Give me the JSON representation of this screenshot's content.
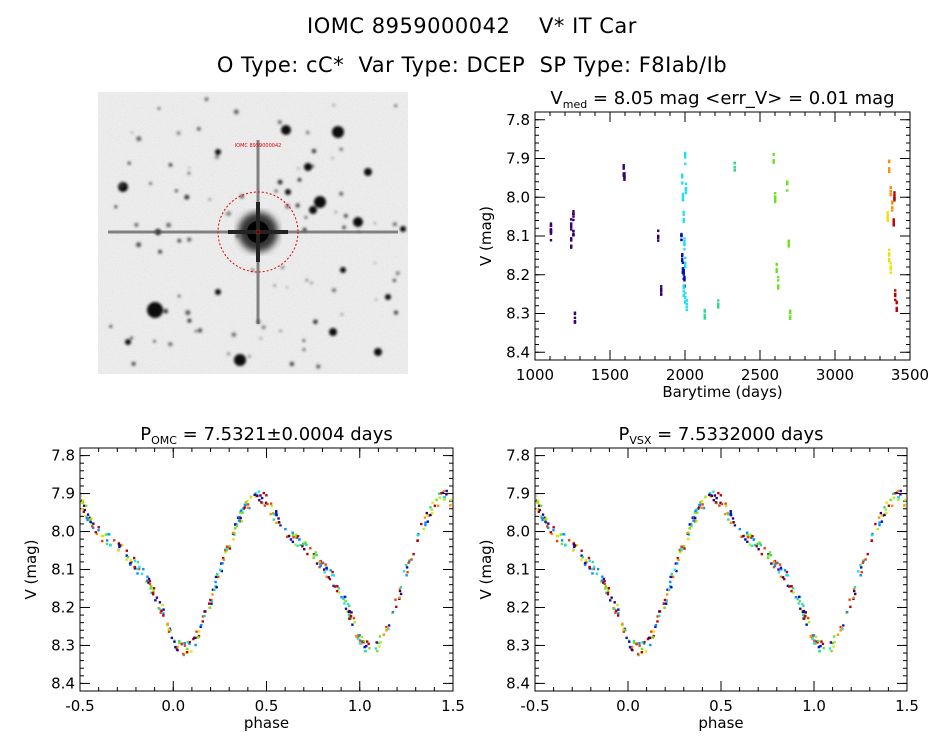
{
  "header": {
    "title_line1": "IOMC 8959000042    V* IT Car",
    "title_line2": "O Type: cC*  Var Type: DCEP  SP Type: F8Iab/Ib"
  },
  "finder": {
    "marker_label": "IOMC 8959000042"
  },
  "colors": {
    "palette": [
      "#3a0070",
      "#0010c0",
      "#0090ff",
      "#20e0f0",
      "#30d890",
      "#70e020",
      "#b0f010",
      "#f0e000",
      "#ff9000",
      "#f04000",
      "#c00000"
    ],
    "finder_circle": "#e00000"
  },
  "plots": {
    "lightcurve": {
      "title_main": "V",
      "title_sub": "med",
      "title_rest": " = 8.05 mag <err_V> = 0.01 mag",
      "xlabel": "Barytime (days)",
      "ylabel": "V (mag)"
    },
    "phase_omc": {
      "title_main": "P",
      "title_sub": "OMC",
      "title_rest": " = 7.5321±0.0004 days",
      "xlabel": "phase",
      "ylabel": "V (mag)"
    },
    "phase_vsx": {
      "title_main": "P",
      "title_sub": "VSX",
      "title_rest": " = 7.5332000 days",
      "xlabel": "phase",
      "ylabel": "V (mag)"
    }
  },
  "chart_data": [
    {
      "type": "scatter",
      "title": "Vmed = 8.05 mag <err_V> = 0.01 mag",
      "xlabel": "Barytime (days)",
      "ylabel": "V (mag)",
      "xlim": [
        1000,
        3500
      ],
      "ylim": [
        8.42,
        7.78
      ],
      "y_inverted": true,
      "xticks": [
        1000,
        1500,
        2000,
        2500,
        3000,
        3500
      ],
      "yticks": [
        7.8,
        7.9,
        8.0,
        8.1,
        8.2,
        8.3,
        8.4
      ],
      "series": [
        {
          "values": [
            [
              1105,
              8.08
            ],
            [
              1105,
              8.1
            ],
            [
              1240,
              8.07
            ],
            [
              1240,
              8.12
            ],
            [
              1255,
              8.05
            ],
            [
              1255,
              8.1
            ],
            [
              1265,
              8.31
            ],
            [
              1590,
              7.93
            ],
            [
              1595,
              7.95
            ],
            [
              1820,
              8.1
            ],
            [
              1840,
              8.24
            ]
          ],
          "color": "#3a0070"
        },
        {
          "values": [
            [
              1975,
              8.1
            ],
            [
              1980,
              8.15
            ],
            [
              1985,
              8.18
            ],
            [
              1990,
              8.2
            ],
            [
              1995,
              8.22
            ]
          ],
          "color": "#0010c0"
        },
        {
          "values": [
            [
              1980,
              7.95
            ],
            [
              1985,
              8.0
            ],
            [
              1990,
              8.05
            ],
            [
              1995,
              8.12
            ],
            [
              2000,
              8.17
            ],
            [
              2000,
              7.9
            ],
            [
              2005,
              7.98
            ],
            [
              2010,
              8.28
            ],
            [
              1990,
              8.24
            ],
            [
              2000,
              8.26
            ]
          ],
          "color": "#20e0f0"
        },
        {
          "values": [
            [
              2130,
              8.3
            ],
            [
              2220,
              8.28
            ],
            [
              2330,
              7.92
            ]
          ],
          "color": "#30d890"
        },
        {
          "values": [
            [
              2590,
              7.9
            ],
            [
              2600,
              8.0
            ],
            [
              2610,
              8.18
            ],
            [
              2620,
              8.22
            ],
            [
              2680,
              7.97
            ],
            [
              2690,
              8.12
            ],
            [
              2700,
              8.3
            ]
          ],
          "color": "#70e020"
        },
        {
          "values": [
            [
              3350,
              8.05
            ],
            [
              3360,
              8.15
            ],
            [
              3370,
              8.18
            ]
          ],
          "color": "#f0e000"
        },
        {
          "values": [
            [
              3360,
              7.92
            ],
            [
              3370,
              7.98
            ],
            [
              3380,
              8.02
            ]
          ],
          "color": "#ff9000"
        },
        {
          "values": [
            [
              3390,
              8.06
            ],
            [
              3400,
              8.25
            ],
            [
              3410,
              8.28
            ],
            [
              3395,
              8.0
            ]
          ],
          "color": "#c00000"
        }
      ]
    },
    {
      "type": "scatter",
      "title": "POMC = 7.5321±0.0004 days",
      "xlabel": "phase",
      "ylabel": "V (mag)",
      "xlim": [
        -0.5,
        1.5
      ],
      "ylim": [
        8.42,
        7.78
      ],
      "y_inverted": true,
      "xticks": [
        -0.5,
        0.0,
        0.5,
        1.0,
        1.5
      ],
      "yticks": [
        7.8,
        7.9,
        8.0,
        8.1,
        8.2,
        8.3,
        8.4
      ],
      "phase_curve": {
        "phase": [
          0.0,
          0.05,
          0.1,
          0.15,
          0.2,
          0.25,
          0.3,
          0.35,
          0.4,
          0.45,
          0.5,
          0.55,
          0.6,
          0.65,
          0.7,
          0.75,
          0.8,
          0.85,
          0.9,
          0.95,
          1.0
        ],
        "mag": [
          8.29,
          8.31,
          8.3,
          8.25,
          8.18,
          8.1,
          8.03,
          7.97,
          7.93,
          7.9,
          7.92,
          7.96,
          8.0,
          8.02,
          8.04,
          8.06,
          8.09,
          8.12,
          8.16,
          8.22,
          8.29
        ]
      }
    },
    {
      "type": "scatter",
      "title": "PVSX = 7.5332000 days",
      "xlabel": "phase",
      "ylabel": "V (mag)",
      "xlim": [
        -0.5,
        1.5
      ],
      "ylim": [
        8.42,
        7.78
      ],
      "y_inverted": true,
      "xticks": [
        -0.5,
        0.0,
        0.5,
        1.0,
        1.5
      ],
      "yticks": [
        7.8,
        7.9,
        8.0,
        8.1,
        8.2,
        8.3,
        8.4
      ],
      "phase_curve": {
        "phase": [
          0.0,
          0.05,
          0.1,
          0.15,
          0.2,
          0.25,
          0.3,
          0.35,
          0.4,
          0.45,
          0.5,
          0.55,
          0.6,
          0.65,
          0.7,
          0.75,
          0.8,
          0.85,
          0.9,
          0.95,
          1.0
        ],
        "mag": [
          8.29,
          8.31,
          8.3,
          8.25,
          8.18,
          8.1,
          8.03,
          7.97,
          7.93,
          7.9,
          7.92,
          7.96,
          8.0,
          8.02,
          8.04,
          8.06,
          8.09,
          8.12,
          8.16,
          8.22,
          8.29
        ]
      }
    }
  ]
}
